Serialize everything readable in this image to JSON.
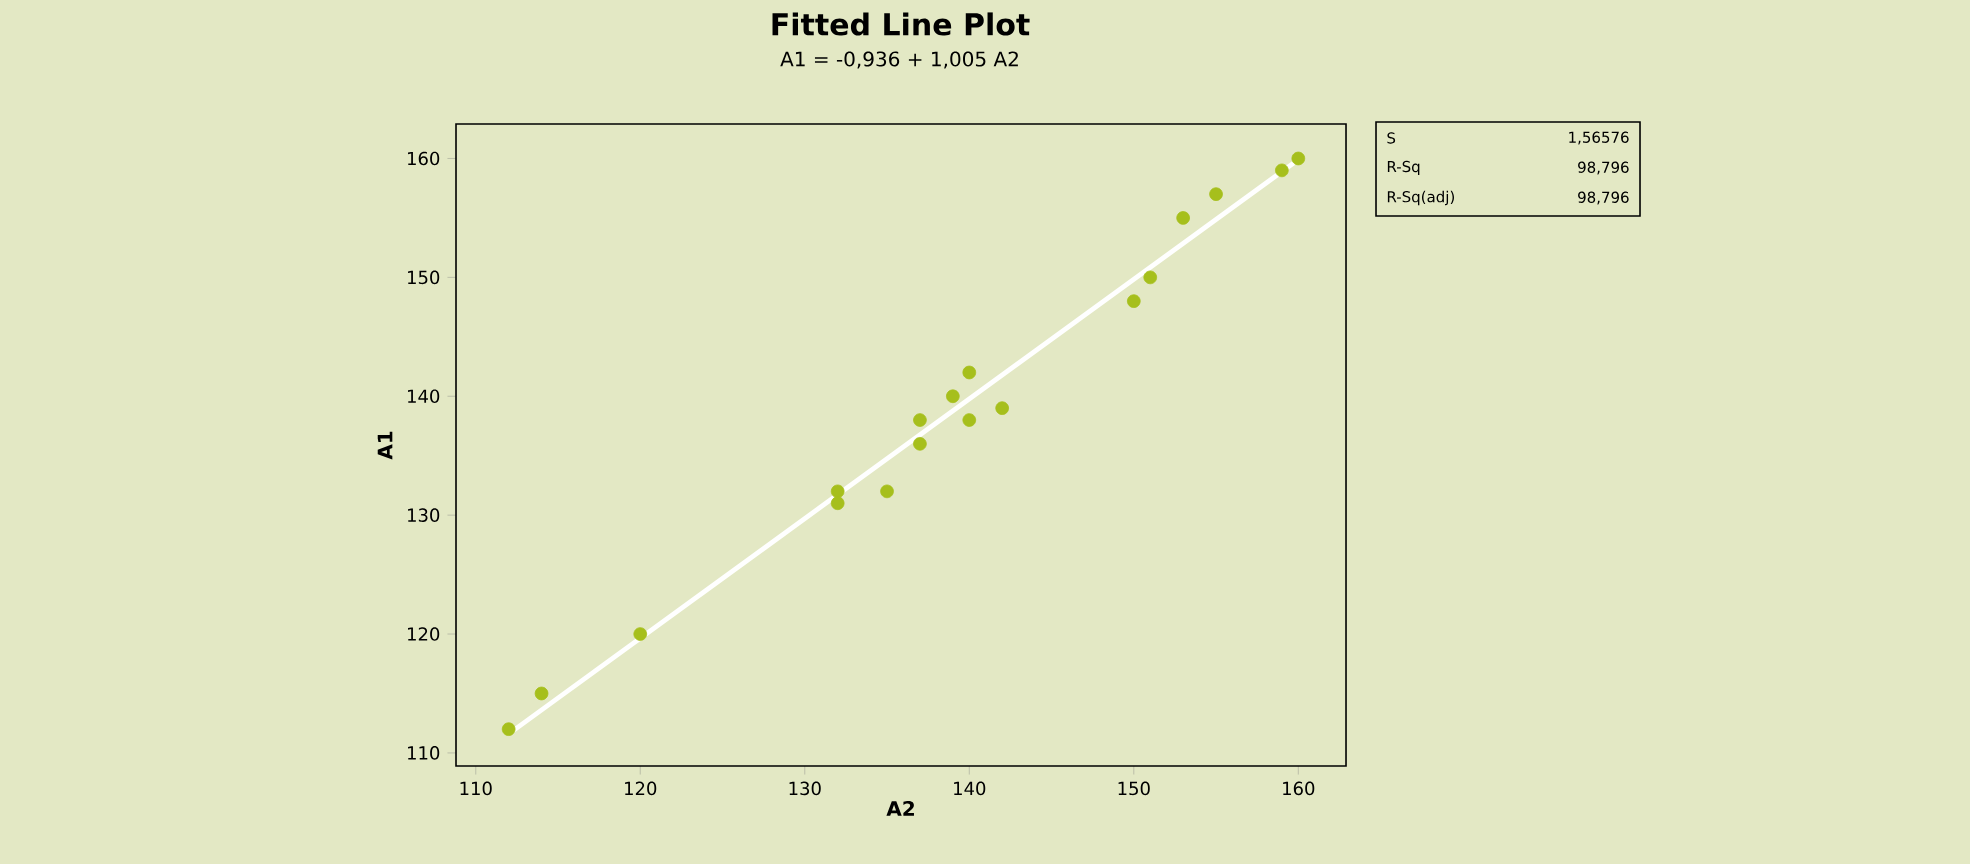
{
  "chart_data": {
    "type": "scatter",
    "title": "Fitted Line Plot",
    "subtitle": "A1 = -0,936 + 1,005 A2",
    "xlabel": "A2",
    "ylabel": "A1",
    "xlim": [
      108.8,
      162.9
    ],
    "ylim": [
      108.9,
      162.9
    ],
    "xticks": [
      110,
      120,
      130,
      140,
      150,
      160
    ],
    "yticks": [
      110,
      120,
      130,
      140,
      150,
      160
    ],
    "grid": false,
    "series": [
      {
        "color": "#a6bf1c",
        "marker": "circle",
        "x": [
          112,
          114,
          120,
          132,
          132,
          135,
          137,
          137,
          139,
          140,
          140,
          142,
          150,
          151,
          153,
          155,
          159,
          160
        ],
        "values": [
          112,
          115,
          120,
          132,
          131,
          132,
          138,
          136,
          140,
          142,
          138,
          139,
          148,
          150,
          155,
          157,
          159,
          160
        ]
      },
      {
        "type": "line",
        "color": "#ffffff",
        "marker": "none",
        "line_style": "solid",
        "x": [
          112,
          160
        ],
        "values": [
          111.6,
          159.9
        ]
      }
    ],
    "annotations": [
      "S",
      "1,56576",
      "R-Sq",
      "98,796",
      "R-Sq(adj)",
      "98,796"
    ]
  }
}
